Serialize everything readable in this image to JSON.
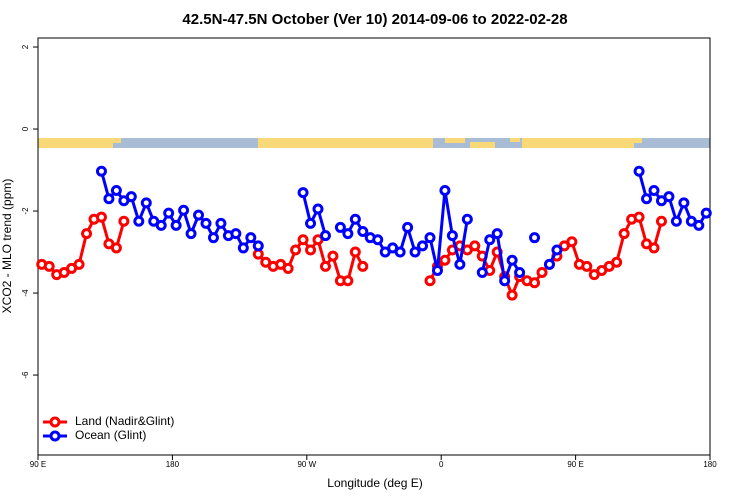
{
  "chart_data": {
    "type": "line",
    "title": "42.5N-47.5N October (Ver 10)   2014-09-06 to 2022-02-28",
    "x_label": "Longitude (deg E)",
    "y_label": "XCO2 - MLO trend (ppm)",
    "xlim": [
      90,
      540
    ],
    "xticks": [
      {
        "value": 90,
        "label": "90 E"
      },
      {
        "value": 180,
        "label": "180"
      },
      {
        "value": 270,
        "label": "90 W"
      },
      {
        "value": 360,
        "label": "0"
      },
      {
        "value": 450,
        "label": "90 E"
      },
      {
        "value": 540,
        "label": "180"
      }
    ],
    "ylim": [
      -7.95,
      2.22
    ],
    "yticks": [
      2,
      0,
      -2,
      -4,
      -6
    ],
    "legend": "bottom-left",
    "x": [
      92.5,
      97.5,
      102.5,
      107.5,
      112.5,
      117.5,
      122.5,
      127.5,
      132.5,
      137.5,
      142.5,
      147.5,
      152.5,
      157.5,
      162.5,
      167.5,
      172.5,
      177.5,
      182.5,
      187.5,
      192.5,
      197.5,
      202.5,
      207.5,
      212.5,
      217.5,
      222.5,
      227.5,
      232.5,
      237.5,
      242.5,
      247.5,
      252.5,
      257.5,
      262.5,
      267.5,
      272.5,
      277.5,
      282.5,
      287.5,
      292.5,
      297.5,
      302.5,
      307.5,
      312.5,
      317.5,
      322.5,
      327.5,
      332.5,
      337.5,
      342.5,
      347.5,
      352.5,
      357.5,
      362.5,
      367.5,
      372.5,
      377.5,
      382.5,
      387.5,
      392.5,
      397.5,
      402.5,
      407.5,
      412.5,
      417.5,
      422.5,
      427.5,
      432.5,
      437.5,
      442.5,
      447.5,
      452.5,
      457.5,
      462.5,
      467.5,
      472.5,
      477.5,
      482.5,
      487.5,
      492.5,
      497.5,
      502.5,
      507.5,
      512.5,
      517.5,
      522.5,
      527.5,
      532.5,
      537.5
    ],
    "series": [
      {
        "name": "Land (Nadir&Glint)",
        "color": "#ff0000",
        "values": [
          -3.3,
          -3.35,
          -3.55,
          -3.5,
          -3.4,
          -3.3,
          -2.55,
          -2.2,
          -2.15,
          -2.8,
          -2.9,
          -2.25,
          null,
          null,
          null,
          null,
          null,
          null,
          null,
          null,
          null,
          null,
          null,
          null,
          null,
          null,
          null,
          null,
          null,
          -3.05,
          -3.25,
          -3.35,
          -3.3,
          -3.4,
          -2.95,
          -2.7,
          -2.95,
          -2.7,
          -3.35,
          -3.1,
          -3.7,
          -3.7,
          -3.0,
          -3.35,
          null,
          null,
          null,
          null,
          null,
          null,
          null,
          null,
          -3.7,
          -3.35,
          -3.2,
          -2.95,
          -2.85,
          -2.95,
          -2.85,
          -3.1,
          -3.45,
          -3.0,
          -3.6,
          -4.05,
          -3.6,
          -3.7,
          -3.75,
          -3.5,
          -3.3,
          -3.1,
          -2.85,
          -2.75,
          -3.3,
          -3.35,
          -3.55,
          -3.45,
          -3.35,
          -3.25,
          -2.55,
          -2.2,
          -2.15,
          -2.8,
          -2.9,
          -2.25,
          null,
          null,
          null,
          null,
          null,
          null
        ]
      },
      {
        "name": "Ocean (Glint)",
        "color": "#0000ff",
        "values": [
          null,
          null,
          null,
          null,
          null,
          null,
          null,
          null,
          -1.03,
          -1.7,
          -1.5,
          -1.75,
          -1.65,
          -2.25,
          -1.8,
          -2.25,
          -2.35,
          -2.05,
          -2.35,
          -1.98,
          -2.55,
          -2.1,
          -2.3,
          -2.65,
          -2.3,
          -2.6,
          -2.55,
          -2.9,
          -2.65,
          -2.85,
          null,
          null,
          null,
          null,
          null,
          -1.55,
          -2.3,
          -1.95,
          -2.6,
          null,
          -2.4,
          -2.55,
          -2.2,
          -2.5,
          -2.65,
          -2.7,
          -3.0,
          -2.9,
          -3.0,
          -2.4,
          -3.0,
          -2.85,
          -2.65,
          -3.45,
          -1.5,
          -2.6,
          -3.3,
          -2.2,
          null,
          -3.5,
          -2.7,
          -2.55,
          -3.7,
          -3.2,
          -3.5,
          null,
          -2.65,
          null,
          -3.3,
          -2.95,
          null,
          null,
          null,
          null,
          null,
          null,
          null,
          null,
          null,
          null,
          -1.03,
          -1.7,
          -1.5,
          -1.75,
          -1.65,
          -2.25,
          -1.8,
          -2.25,
          -2.35,
          -2.05
        ]
      }
    ]
  }
}
